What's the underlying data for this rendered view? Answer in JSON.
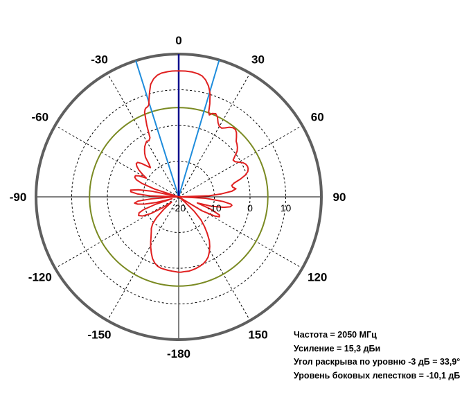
{
  "chart_data": {
    "type": "polar",
    "angle_ticks": [
      "0",
      "30",
      "60",
      "90",
      "120",
      "150",
      "-180",
      "-150",
      "-120",
      "-90",
      "-60",
      "-30"
    ],
    "angle_tick_values": [
      0,
      30,
      60,
      90,
      120,
      150,
      180,
      -150,
      -120,
      -90,
      -60,
      -30
    ],
    "radial_tick_labels": [
      "-20",
      "-10",
      "0",
      "10"
    ],
    "radial_tick_values": [
      -20,
      -10,
      0,
      10
    ],
    "radial_range": [
      -20,
      20
    ],
    "grid": true,
    "reference_circle_db": 5,
    "beam_lines_deg": [
      -17.5,
      16.5
    ],
    "main_line_deg": 0,
    "series": [
      {
        "color": "#e02020",
        "points": [
          [
            0,
            15.3
          ],
          [
            3,
            15.3
          ],
          [
            6,
            15.2
          ],
          [
            9,
            14.9
          ],
          [
            11,
            14.5
          ],
          [
            13,
            13.6
          ],
          [
            15,
            12.2
          ],
          [
            16,
            11.2
          ],
          [
            17,
            10.1
          ],
          [
            18.5,
            7.5
          ],
          [
            19.5,
            5.2
          ],
          [
            20.5,
            4.5
          ],
          [
            22,
            5.2
          ],
          [
            24,
            5.5
          ],
          [
            26,
            4.8
          ],
          [
            28,
            3.5
          ],
          [
            30,
            2.8
          ],
          [
            32,
            2.7
          ],
          [
            34,
            3.3
          ],
          [
            36,
            4.1
          ],
          [
            38,
            4.6
          ],
          [
            40,
            4.7
          ],
          [
            42,
            4.2
          ],
          [
            44,
            3.3
          ],
          [
            46,
            2.4
          ],
          [
            48,
            2.0
          ],
          [
            50,
            1.5
          ],
          [
            52,
            0.8
          ],
          [
            54,
            -0.5
          ],
          [
            56,
            -1.6
          ],
          [
            58,
            -1.4
          ],
          [
            60,
            -0.6
          ],
          [
            62,
            0.4
          ],
          [
            64,
            0.9
          ],
          [
            66,
            1.1
          ],
          [
            68,
            1.0
          ],
          [
            70,
            0.6
          ],
          [
            72,
            -0.4
          ],
          [
            74,
            -2.0
          ],
          [
            76,
            -4.0
          ],
          [
            78,
            -4.8
          ],
          [
            80,
            -4.6
          ],
          [
            81,
            -4.2
          ],
          [
            82,
            -3.8
          ],
          [
            84,
            -5.0
          ],
          [
            86,
            -8.0
          ],
          [
            88,
            -11.5
          ],
          [
            90,
            -20.0
          ],
          [
            93,
            -12.5
          ],
          [
            96,
            -7.5
          ],
          [
            98,
            -5.2
          ],
          [
            99,
            -4.9
          ],
          [
            101,
            -5.3
          ],
          [
            103,
            -7.0
          ],
          [
            106,
            -10.5
          ],
          [
            108,
            -14.5
          ],
          [
            111,
            -10.5
          ],
          [
            114,
            -7.5
          ],
          [
            116,
            -7.3
          ],
          [
            118,
            -8.5
          ],
          [
            121,
            -12.5
          ],
          [
            124,
            -20.0
          ],
          [
            127,
            -20.0
          ],
          [
            130,
            -18.0
          ],
          [
            133,
            -14.0
          ],
          [
            136,
            -11.0
          ],
          [
            139,
            -9.0
          ],
          [
            142,
            -7.0
          ],
          [
            145,
            -5.0
          ],
          [
            148,
            -3.6
          ],
          [
            151,
            -2.3
          ],
          [
            154,
            -1.2
          ],
          [
            157,
            -0.5
          ],
          [
            160,
            0.0
          ],
          [
            163,
            0.3
          ],
          [
            166,
            0.6
          ],
          [
            169,
            0.8
          ],
          [
            172,
            1.0
          ],
          [
            175,
            1.0
          ],
          [
            178,
            1.1
          ],
          [
            180,
            1.1
          ],
          [
            -178,
            1.0
          ],
          [
            -175,
            0.9
          ],
          [
            -172,
            0.8
          ],
          [
            -169,
            0.7
          ],
          [
            -166,
            0.6
          ],
          [
            -163,
            0.3
          ],
          [
            -160,
            -0.3
          ],
          [
            -157,
            -1.2
          ],
          [
            -154,
            -2.5
          ],
          [
            -151,
            -3.8
          ],
          [
            -148,
            -5.2
          ],
          [
            -145,
            -6.5
          ],
          [
            -142,
            -7.5
          ],
          [
            -139,
            -8.3
          ],
          [
            -136,
            -9.5
          ],
          [
            -133,
            -11.5
          ],
          [
            -130,
            -14.5
          ],
          [
            -127,
            -17.5
          ],
          [
            -124,
            -14.5
          ],
          [
            -121,
            -11.0
          ],
          [
            -118,
            -8.6
          ],
          [
            -115,
            -7.6
          ],
          [
            -112,
            -8.0
          ],
          [
            -110,
            -9.5
          ],
          [
            -108,
            -13.0
          ],
          [
            -106,
            -18.0
          ],
          [
            -104,
            -13.5
          ],
          [
            -102,
            -10.3
          ],
          [
            -100,
            -8.3
          ],
          [
            -98,
            -7.5
          ],
          [
            -96,
            -8.5
          ],
          [
            -94,
            -12.5
          ],
          [
            -92,
            -18.0
          ],
          [
            -90,
            -20.0
          ],
          [
            -88,
            -12.0
          ],
          [
            -86,
            -8.5
          ],
          [
            -84,
            -6.5
          ],
          [
            -82,
            -6.4
          ],
          [
            -80,
            -8.5
          ],
          [
            -78,
            -12.5
          ],
          [
            -75,
            -20.0
          ],
          [
            -72,
            -13.0
          ],
          [
            -70,
            -9.0
          ],
          [
            -68,
            -7.2
          ],
          [
            -66,
            -6.5
          ],
          [
            -64,
            -6.5
          ],
          [
            -62,
            -7.5
          ],
          [
            -60,
            -9.5
          ],
          [
            -58,
            -8.0
          ],
          [
            -56,
            -6.5
          ],
          [
            -54,
            -5.5
          ],
          [
            -52,
            -4.9
          ],
          [
            -50,
            -5.0
          ],
          [
            -48,
            -6.0
          ],
          [
            -46,
            -7.5
          ],
          [
            -44,
            -8.6
          ],
          [
            -42,
            -7.5
          ],
          [
            -40,
            -5.5
          ],
          [
            -38,
            -4.5
          ],
          [
            -36,
            -3.7
          ],
          [
            -34,
            -3.0
          ],
          [
            -32,
            -2.5
          ],
          [
            -30,
            -2.0
          ],
          [
            -28,
            -2.2
          ],
          [
            -26,
            -1.6
          ],
          [
            -25,
            0.0
          ],
          [
            -24,
            2.0
          ],
          [
            -22,
            5.5
          ],
          [
            -21,
            6.3
          ],
          [
            -20,
            6.6
          ],
          [
            -19,
            6.7
          ],
          [
            -18,
            7.1
          ],
          [
            -17,
            8.5
          ],
          [
            -15.5,
            10.5
          ],
          [
            -14,
            12.5
          ],
          [
            -12,
            13.8
          ],
          [
            -10,
            14.6
          ],
          [
            -8,
            15.0
          ],
          [
            -5,
            15.2
          ],
          [
            -3,
            15.3
          ],
          [
            0,
            15.3
          ]
        ]
      }
    ]
  },
  "info": {
    "frequency": "Частота = 2050 МГц",
    "gain": "Усиление = 15,3 дБи",
    "beamwidth": "Угол раскрыва по уровню -3 дБ = 33,9°",
    "sidelobe": "Уровень боковых лепестков = -10,1 дБ"
  },
  "colors": {
    "outer_ring": "#5f5f5f",
    "reference_circle": "#7a8a22",
    "pattern": "#e02020",
    "beam_lines": "#1e8cdc",
    "main_line": "#0a0a8c",
    "grid": "#000000"
  }
}
